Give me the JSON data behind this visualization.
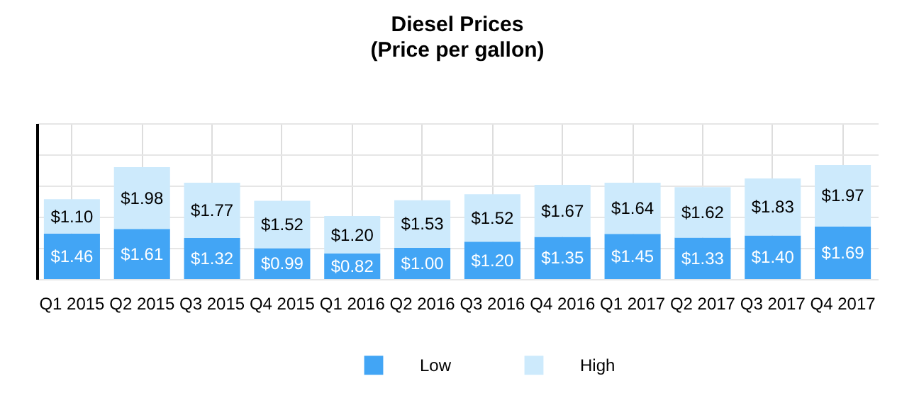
{
  "chart_data": {
    "type": "bar",
    "title": "Diesel Prices",
    "subtitle": "(Price per gallon)",
    "categories": [
      "Q1 2015",
      "Q2 2015",
      "Q3 2015",
      "Q4 2015",
      "Q1 2016",
      "Q2 2016",
      "Q3 2016",
      "Q4 2016",
      "Q1 2017",
      "Q2 2017",
      "Q3 2017",
      "Q4 2017"
    ],
    "stacked": true,
    "series": [
      {
        "name": "Low",
        "color": "#42a5f5",
        "values": [
          1.46,
          1.61,
          1.32,
          0.99,
          0.82,
          1.0,
          1.2,
          1.35,
          1.45,
          1.33,
          1.4,
          1.69
        ],
        "value_labels": [
          "$1.46",
          "$1.61",
          "$1.32",
          "$0.99",
          "$0.82",
          "$1.00",
          "$1.20",
          "$1.35",
          "$1.45",
          "$1.33",
          "$1.40",
          "$1.69"
        ]
      },
      {
        "name": "High",
        "color": "#cdeafc",
        "values": [
          1.1,
          1.98,
          1.77,
          1.52,
          1.2,
          1.53,
          1.52,
          1.67,
          1.64,
          1.62,
          1.83,
          1.97
        ],
        "value_labels": [
          "$1.10",
          "$1.98",
          "$1.77",
          "$1.52",
          "$1.20",
          "$1.53",
          "$1.52",
          "$1.67",
          "$1.64",
          "$1.62",
          "$1.83",
          "$1.97"
        ]
      }
    ],
    "ylim": [
      0,
      5
    ],
    "yticks": [
      {
        "value": 0,
        "label": null
      },
      {
        "value": 1,
        "label": null
      },
      {
        "value": 2,
        "label": null
      },
      {
        "value": 3,
        "label": null
      },
      {
        "value": 4,
        "label": null
      },
      {
        "value": 5,
        "label": null
      }
    ],
    "tick_labels": "x",
    "grid": true,
    "legend": "bottom"
  }
}
